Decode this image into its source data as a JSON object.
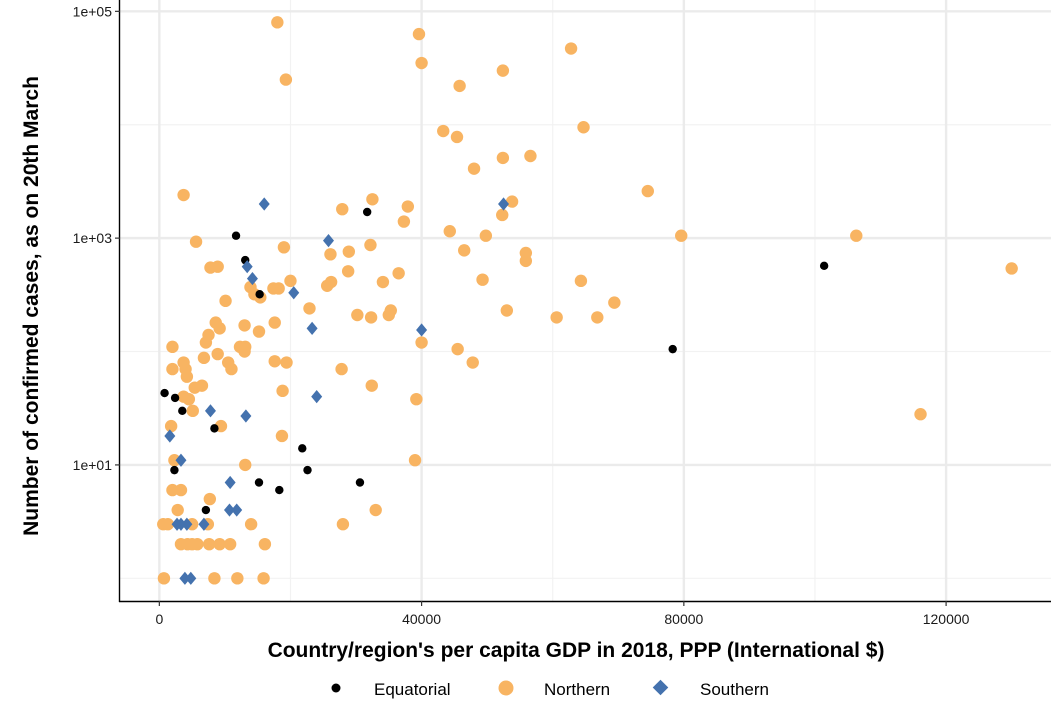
{
  "chart_data": {
    "type": "scatter",
    "xlabel": "Country/region's per capita GDP in 2018, PPP (International $)",
    "ylabel": "Number of confirmed cases, as on 20th March",
    "xlim": [
      -6000,
      136000
    ],
    "ylim_log10": [
      -0.2,
      5.1
    ],
    "y_scale": "log10",
    "x_ticks": [
      0,
      40000,
      80000,
      120000
    ],
    "x_tick_labels": [
      "0",
      "40000",
      "80000",
      "120000"
    ],
    "y_ticks": [
      10,
      1000,
      100000
    ],
    "y_tick_labels": [
      "1e+01",
      "1e+03",
      "1e+05"
    ],
    "legend": {
      "position": "bottom",
      "entries": [
        "Equatorial",
        "Northern",
        "Southern"
      ]
    },
    "series": [
      {
        "name": "Northern",
        "color": "#F8B462",
        "marker": "circle",
        "points": [
          [
            18000,
            80000
          ],
          [
            39600,
            63000
          ],
          [
            40000,
            35000
          ],
          [
            62800,
            47000
          ],
          [
            52400,
            30000
          ],
          [
            19300,
            25000
          ],
          [
            45800,
            22000
          ],
          [
            64700,
            9500
          ],
          [
            43300,
            8800
          ],
          [
            45400,
            7800
          ],
          [
            56600,
            5300
          ],
          [
            52400,
            5100
          ],
          [
            48000,
            4100
          ],
          [
            74500,
            2600
          ],
          [
            3700,
            2400
          ],
          [
            32500,
            2200
          ],
          [
            53800,
            2100
          ],
          [
            27900,
            1800
          ],
          [
            37900,
            1900
          ],
          [
            52300,
            1600
          ],
          [
            37300,
            1400
          ],
          [
            44300,
            1150
          ],
          [
            49800,
            1050
          ],
          [
            79600,
            1050
          ],
          [
            106300,
            1050
          ],
          [
            32200,
            870
          ],
          [
            5600,
            930
          ],
          [
            19000,
            830
          ],
          [
            28900,
            760
          ],
          [
            26100,
            720
          ],
          [
            46500,
            780
          ],
          [
            55900,
            740
          ],
          [
            55900,
            630
          ],
          [
            130000,
            540
          ],
          [
            7800,
            550
          ],
          [
            8900,
            560
          ],
          [
            36500,
            490
          ],
          [
            28800,
            510
          ],
          [
            20000,
            420
          ],
          [
            25600,
            380
          ],
          [
            26200,
            410
          ],
          [
            34100,
            410
          ],
          [
            13900,
            370
          ],
          [
            64300,
            420
          ],
          [
            49300,
            430
          ],
          [
            17400,
            360
          ],
          [
            18200,
            360
          ],
          [
            14500,
            320
          ],
          [
            15400,
            300
          ],
          [
            10100,
            280
          ],
          [
            69400,
            270
          ],
          [
            22900,
            240
          ],
          [
            53000,
            230
          ],
          [
            35300,
            230
          ],
          [
            35000,
            210
          ],
          [
            30200,
            210
          ],
          [
            32300,
            200
          ],
          [
            60600,
            200
          ],
          [
            66800,
            200
          ],
          [
            8600,
            180
          ],
          [
            17600,
            180
          ],
          [
            13000,
            170
          ],
          [
            9200,
            160
          ],
          [
            15200,
            150
          ],
          [
            7500,
            140
          ],
          [
            7100,
            120
          ],
          [
            40000,
            120
          ],
          [
            12300,
            110
          ],
          [
            13100,
            110
          ],
          [
            2000,
            110
          ],
          [
            45500,
            105
          ],
          [
            13000,
            100
          ],
          [
            8900,
            95
          ],
          [
            6800,
            88
          ],
          [
            17600,
            82
          ],
          [
            19400,
            80
          ],
          [
            47800,
            80
          ],
          [
            10500,
            80
          ],
          [
            3700,
            80
          ],
          [
            11000,
            70
          ],
          [
            2000,
            70
          ],
          [
            27800,
            70
          ],
          [
            4000,
            70
          ],
          [
            4200,
            60
          ],
          [
            6500,
            50
          ],
          [
            32400,
            50
          ],
          [
            5400,
            48
          ],
          [
            18800,
            45
          ],
          [
            3700,
            40
          ],
          [
            4500,
            38
          ],
          [
            39200,
            38
          ],
          [
            5100,
            30
          ],
          [
            116100,
            28
          ],
          [
            1800,
            22
          ],
          [
            9400,
            22
          ],
          [
            18700,
            18
          ],
          [
            13100,
            10
          ],
          [
            39000,
            11
          ],
          [
            2300,
            11
          ],
          [
            2000,
            6
          ],
          [
            3300,
            6
          ],
          [
            7700,
            5
          ],
          [
            2800,
            4
          ],
          [
            33000,
            4
          ],
          [
            600,
            3
          ],
          [
            1300,
            3
          ],
          [
            5000,
            3
          ],
          [
            28000,
            3
          ],
          [
            14000,
            3
          ],
          [
            7400,
            3
          ],
          [
            3300,
            2
          ],
          [
            4300,
            2
          ],
          [
            5000,
            2
          ],
          [
            5800,
            2
          ],
          [
            7600,
            2
          ],
          [
            9200,
            2
          ],
          [
            10800,
            2
          ],
          [
            16100,
            2
          ],
          [
            700,
            1
          ],
          [
            8400,
            1
          ],
          [
            11900,
            1
          ],
          [
            15900,
            1
          ]
        ]
      },
      {
        "name": "Equatorial",
        "color": "#000000",
        "marker": "circle",
        "points": [
          [
            31700,
            1700
          ],
          [
            11700,
            1050
          ],
          [
            13100,
            640
          ],
          [
            101400,
            570
          ],
          [
            15300,
            320
          ],
          [
            78300,
            105
          ],
          [
            800,
            43
          ],
          [
            2400,
            39
          ],
          [
            3500,
            30
          ],
          [
            8400,
            21
          ],
          [
            21800,
            14
          ],
          [
            22600,
            9
          ],
          [
            2300,
            9
          ],
          [
            30600,
            7
          ],
          [
            15200,
            7
          ],
          [
            18300,
            6
          ],
          [
            7100,
            4
          ]
        ]
      },
      {
        "name": "Southern",
        "color": "#4472AE",
        "marker": "diamond",
        "points": [
          [
            16000,
            2000
          ],
          [
            52500,
            2000
          ],
          [
            25800,
            950
          ],
          [
            13400,
            560
          ],
          [
            14200,
            440
          ],
          [
            20500,
            330
          ],
          [
            23300,
            160
          ],
          [
            40000,
            155
          ],
          [
            24000,
            40
          ],
          [
            7800,
            30
          ],
          [
            13200,
            27
          ],
          [
            1600,
            18
          ],
          [
            3300,
            11
          ],
          [
            10800,
            7
          ],
          [
            10700,
            4
          ],
          [
            11800,
            4
          ],
          [
            2700,
            3
          ],
          [
            3300,
            3
          ],
          [
            4200,
            3
          ],
          [
            6800,
            3
          ],
          [
            3900,
            1
          ],
          [
            4800,
            1
          ]
        ]
      }
    ]
  }
}
